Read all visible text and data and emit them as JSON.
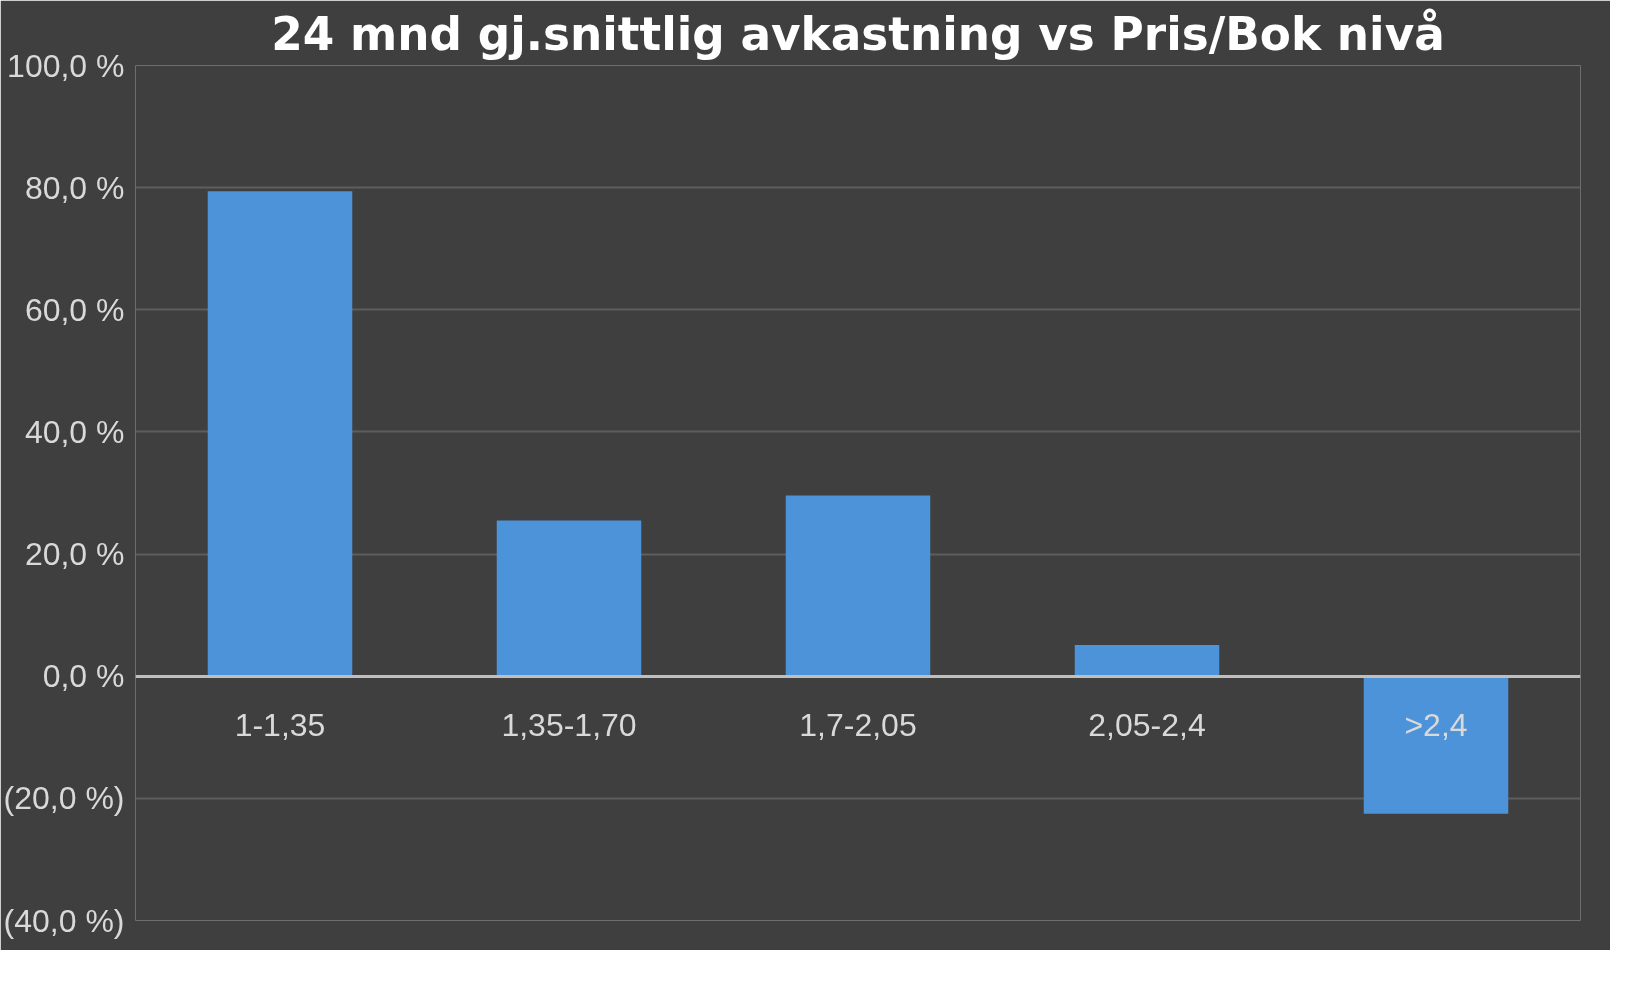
{
  "chart_data": {
    "type": "bar",
    "title": "24 mnd gj.snittlig avkastning vs Pris/Bok nivå",
    "categories": [
      "1-1,35",
      "1,35-1,70",
      "1,7-2,05",
      "2,05-2,4",
      ">2,4"
    ],
    "values": [
      79.4,
      25.5,
      29.6,
      5.1,
      -22.5
    ],
    "color": "#4d93d9",
    "ylim": [
      -40,
      100
    ],
    "yticks": [
      {
        "value": -40,
        "label": "(40,0 %)"
      },
      {
        "value": -20,
        "label": "(20,0 %)"
      },
      {
        "value": 0,
        "label": "0,0 %"
      },
      {
        "value": 20,
        "label": "20,0 %"
      },
      {
        "value": 40,
        "label": "40,0 %"
      },
      {
        "value": 60,
        "label": "60,0 %"
      },
      {
        "value": 80,
        "label": "80,0 %"
      },
      {
        "value": 100,
        "label": "100,0 %"
      }
    ],
    "grid": "y"
  }
}
